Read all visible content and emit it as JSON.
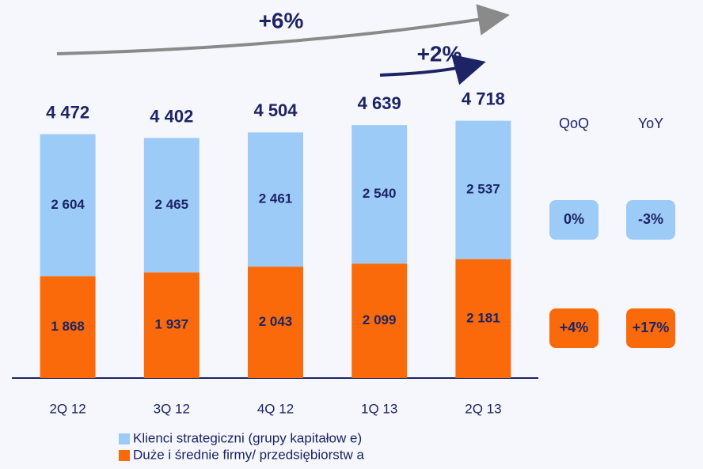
{
  "chart_data": {
    "type": "bar",
    "stacked": true,
    "categories": [
      "2Q 12",
      "3Q 12",
      "4Q 12",
      "1Q 13",
      "2Q 13"
    ],
    "series": [
      {
        "name": "Klienci strategiczni (grupy kapitałow e)",
        "color": "#9ccbf7",
        "values": [
          2604,
          2465,
          2461,
          2540,
          2537
        ],
        "value_labels": [
          "2 604",
          "2 465",
          "2 461",
          "2 540",
          "2 537"
        ]
      },
      {
        "name": "Duże i średnie firmy/ przedsiębiorstw a",
        "color": "#fa6a0a",
        "values": [
          1868,
          1937,
          2043,
          2099,
          2181
        ],
        "value_labels": [
          "1 868",
          "1 937",
          "2 043",
          "2 099",
          "2 181"
        ]
      }
    ],
    "totals": [
      4472,
      4402,
      4504,
      4639,
      4718
    ],
    "total_labels": [
      "4 472",
      "4 402",
      "4 504",
      "4 639",
      "4 718"
    ],
    "ylim": [
      0,
      4800
    ],
    "annotations": [
      "+6%",
      "+2%"
    ],
    "change_table": {
      "headers": [
        "QoQ",
        "YoY"
      ],
      "rows": [
        [
          "0%",
          "-3%"
        ],
        [
          "+4%",
          "+17%"
        ]
      ]
    }
  }
}
